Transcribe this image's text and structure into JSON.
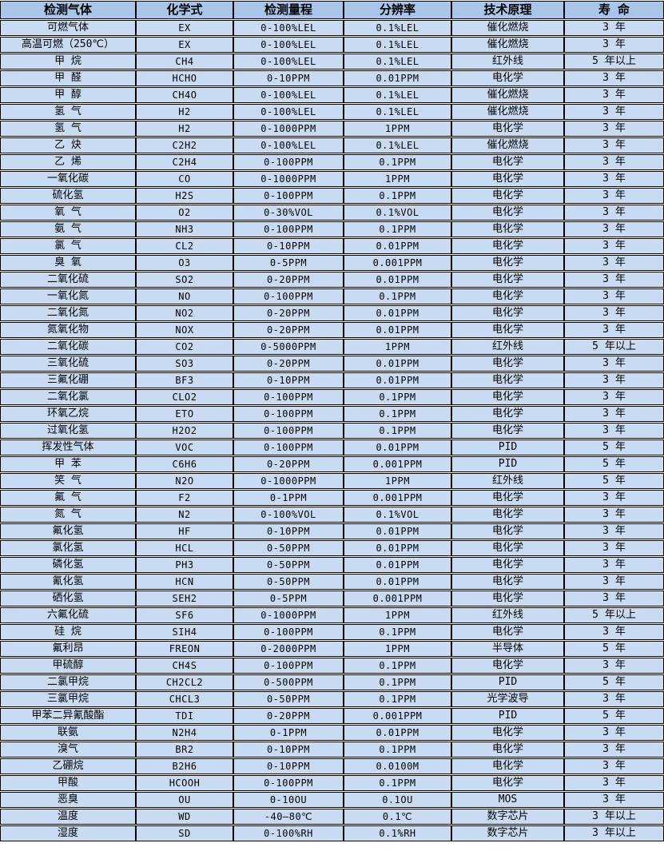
{
  "table": {
    "columns": [
      "检测气体",
      "化学式",
      "检测量程",
      "分辨率",
      "技术原理",
      "寿 命"
    ],
    "rows": [
      [
        "可燃气体",
        "EX",
        "0-100%LEL",
        "0.1%LEL",
        "催化燃烧",
        "3 年"
      ],
      [
        "高温可燃（250℃）",
        "EX",
        "0-100%LEL",
        "0.1%LEL",
        "催化燃烧",
        "3 年"
      ],
      [
        "甲 烷",
        "CH4",
        "0-100%LEL",
        "0.1%LEL",
        "红外线",
        "5 年以上"
      ],
      [
        "甲 醛",
        "HCHO",
        "0-10PPM",
        "0.01PPM",
        "电化学",
        "3 年"
      ],
      [
        "甲 醇",
        "CH4O",
        "0-100%LEL",
        "0.1%LEL",
        "催化燃烧",
        "3 年"
      ],
      [
        "氢 气",
        "H2",
        "0-100%LEL",
        "0.1%LEL",
        "催化燃烧",
        "3 年"
      ],
      [
        "氢 气",
        "H2",
        "0-1000PPM",
        "1PPM",
        "电化学",
        "3 年"
      ],
      [
        "乙 炔",
        "C2H2",
        "0-100%LEL",
        "0.1%LEL",
        "催化燃烧",
        "3 年"
      ],
      [
        "乙 烯",
        "C2H4",
        "0-100PPM",
        "0.1PPM",
        "电化学",
        "3 年"
      ],
      [
        "一氧化碳",
        "CO",
        "0-1000PPM",
        "1PPM",
        "电化学",
        "3 年"
      ],
      [
        "硫化氢",
        "H2S",
        "0-100PPM",
        "0.1PPM",
        "电化学",
        "3 年"
      ],
      [
        "氧 气",
        "O2",
        "0-30%VOL",
        "0.1%VOL",
        "电化学",
        "3 年"
      ],
      [
        "氨 气",
        "NH3",
        "0-100PPM",
        "0.1PPM",
        "电化学",
        "3 年"
      ],
      [
        "氯 气",
        "CL2",
        "0-10PPM",
        "0.01PPM",
        "电化学",
        "3 年"
      ],
      [
        "臭 氧",
        "O3",
        "0-5PPM",
        "0.001PPM",
        "电化学",
        "3 年"
      ],
      [
        "二氧化硫",
        "SO2",
        "0-20PPM",
        "0.01PPM",
        "电化学",
        "3 年"
      ],
      [
        "一氧化氮",
        "NO",
        "0-100PPM",
        "0.1PPM",
        "电化学",
        "3 年"
      ],
      [
        "二氧化氮",
        "NO2",
        "0-20PPM",
        "0.01PPM",
        "电化学",
        "3 年"
      ],
      [
        "氮氧化物",
        "NOX",
        "0-20PPM",
        "0.01PPM",
        "电化学",
        "3 年"
      ],
      [
        "二氧化碳",
        "CO2",
        "0-5000PPM",
        "1PPM",
        "红外线",
        "5 年以上"
      ],
      [
        "三氧化硫",
        "SO3",
        "0-20PPM",
        "0.01PPM",
        "电化学",
        "3 年"
      ],
      [
        "三氟化硼",
        "BF3",
        "0-10PPM",
        "0.01PPM",
        "电化学",
        "3 年"
      ],
      [
        "二氧化氯",
        "CLO2",
        "0-100PPM",
        "0.1PPM",
        "电化学",
        "3 年"
      ],
      [
        "环氧乙烷",
        "ETO",
        "0-100PPM",
        "0.1PPM",
        "电化学",
        "3 年"
      ],
      [
        "过氧化氢",
        "H2O2",
        "0-100PPM",
        "0.1PPM",
        "电化学",
        "3 年"
      ],
      [
        "挥发性气体",
        "VOC",
        "0-100PPM",
        "0.01PPM",
        "PID",
        "5 年"
      ],
      [
        "甲 苯",
        "C6H6",
        "0-20PPM",
        "0.001PPM",
        "PID",
        "5 年"
      ],
      [
        "笑 气",
        "N2O",
        "0-1000PPM",
        "1PPM",
        "红外线",
        "5 年"
      ],
      [
        "氟 气",
        "F2",
        "0-1PPM",
        "0.001PPM",
        "电化学",
        "3 年"
      ],
      [
        "氮 气",
        "N2",
        "0-100%VOL",
        "0.1%VOL",
        "电化学",
        "3 年"
      ],
      [
        "氟化氢",
        "HF",
        "0-10PPM",
        "0.01PPM",
        "电化学",
        "3 年"
      ],
      [
        "氯化氢",
        "HCL",
        "0-50PPM",
        "0.01PPM",
        "电化学",
        "3 年"
      ],
      [
        "磷化氢",
        "PH3",
        "0-50PPM",
        "0.01PPM",
        "电化学",
        "3 年"
      ],
      [
        "氰化氢",
        "HCN",
        "0-50PPM",
        "0.01PPM",
        "电化学",
        "3 年"
      ],
      [
        "硒化氢",
        "SEH2",
        "0-5PPM",
        "0.001PPM",
        "电化学",
        "3 年"
      ],
      [
        "六氟化硫",
        "SF6",
        "0-1000PPM",
        "1PPM",
        "红外线",
        "5 年以上"
      ],
      [
        "硅 烷",
        "SIH4",
        "0-100PPM",
        "0.1PPM",
        "电化学",
        "3 年"
      ],
      [
        "氟利昂",
        "FREON",
        "0-2000PPM",
        "1PPM",
        "半导体",
        "5 年"
      ],
      [
        "甲硫醇",
        "CH4S",
        "0-100PPM",
        "0.1PPM",
        "电化学",
        "3 年"
      ],
      [
        "二氯甲烷",
        "CH2CL2",
        "0-500PPM",
        "0.1PPM",
        "PID",
        "5 年"
      ],
      [
        "三氯甲烷",
        "CHCL3",
        "0-50PPM",
        "0.1PPM",
        "光学波导",
        "3 年"
      ],
      [
        "甲苯二异氰酸酯",
        "TDI",
        "0-20PPM",
        "0.001PPM",
        "PID",
        "5 年"
      ],
      [
        "联氨",
        "N2H4",
        "0-1PPM",
        "0.01PPM",
        "电化学",
        "3 年"
      ],
      [
        "溴气",
        "BR2",
        "0-10PPM",
        "0.1PPM",
        "电化学",
        "3 年"
      ],
      [
        "乙硼烷",
        "B2H6",
        "0-10PPM",
        "0.0100M",
        "电化学",
        "3 年"
      ],
      [
        "甲酸",
        "HCOOH",
        "0-100PPM",
        "0.1PPM",
        "电化学",
        "3 年"
      ],
      [
        "恶臭",
        "OU",
        "0-10OU",
        "0.1OU",
        "MOS",
        "3 年"
      ],
      [
        "温度",
        "WD",
        "-40—80℃",
        "0.1℃",
        "数字芯片",
        "3 年以上"
      ],
      [
        "湿度",
        "SD",
        "0-100%RH",
        "0.1%RH",
        "数字芯片",
        "3 年以上"
      ]
    ],
    "colors": {
      "header_bg": "#a9c5e8",
      "row_bg": "#c9dbf2",
      "border": "#000000",
      "text": "#000000"
    }
  }
}
